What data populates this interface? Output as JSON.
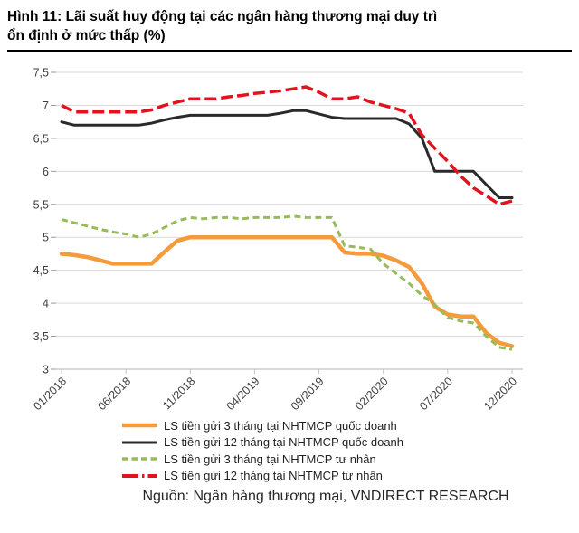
{
  "header": {
    "title_lines": [
      "Hình 11: Lãi suất huy động tại các ngân hàng thương mại duy trì",
      "ổn định ở mức thấp (%)"
    ]
  },
  "source": {
    "label": "Nguồn: Ngân hàng thương mại, VNDIRECT RESEARCH"
  },
  "chart_data": {
    "type": "line",
    "title": "Lãi suất huy động tại các ngân hàng thương mại (%)",
    "n_points": 36,
    "x_range_months": [
      "01/2018",
      "12/2020"
    ],
    "x_tick_labels": [
      "01/2018",
      "06/2018",
      "11/2018",
      "04/2019",
      "09/2019",
      "02/2020",
      "07/2020",
      "12/2020"
    ],
    "x_tick_indices": [
      0,
      5,
      10,
      15,
      20,
      25,
      30,
      35
    ],
    "ylim": [
      3,
      7.5
    ],
    "y_ticks": [
      {
        "v": 7.5,
        "label": "7,5"
      },
      {
        "v": 7.0,
        "label": "7"
      },
      {
        "v": 6.5,
        "label": "6,5"
      },
      {
        "v": 6.0,
        "label": "6"
      },
      {
        "v": 5.5,
        "label": "5,5"
      },
      {
        "v": 5.0,
        "label": "5"
      },
      {
        "v": 4.5,
        "label": "4,5"
      },
      {
        "v": 4.0,
        "label": "4"
      },
      {
        "v": 3.5,
        "label": "3,5"
      },
      {
        "v": 3.0,
        "label": "3"
      }
    ],
    "grid": true,
    "legend_position": "bottom",
    "series": [
      {
        "name": "LS tiền gửi 3 tháng tại NHTMCP quốc doanh",
        "color": "#f49b3b",
        "style": "solid",
        "width": 4.5,
        "values": [
          4.75,
          4.73,
          4.7,
          4.65,
          4.6,
          4.6,
          4.6,
          4.6,
          4.78,
          4.95,
          5.0,
          5.0,
          5.0,
          5.0,
          5.0,
          5.0,
          5.0,
          5.0,
          5.0,
          5.0,
          5.0,
          5.0,
          4.77,
          4.75,
          4.75,
          4.72,
          4.65,
          4.55,
          4.3,
          3.95,
          3.83,
          3.8,
          3.8,
          3.55,
          3.4,
          3.35
        ]
      },
      {
        "name": "LS tiền gửi 12 tháng tại NHTMCP quốc doanh",
        "color": "#2a2a2a",
        "style": "solid",
        "width": 3,
        "values": [
          6.75,
          6.7,
          6.7,
          6.7,
          6.7,
          6.7,
          6.7,
          6.73,
          6.78,
          6.82,
          6.85,
          6.85,
          6.85,
          6.85,
          6.85,
          6.85,
          6.85,
          6.88,
          6.92,
          6.92,
          6.87,
          6.82,
          6.8,
          6.8,
          6.8,
          6.8,
          6.8,
          6.72,
          6.5,
          6.0,
          6.0,
          6.0,
          6.0,
          5.8,
          5.6,
          5.6
        ]
      },
      {
        "name": "LS tiền gửi 3 tháng tại NHTMCP tư nhân",
        "color": "#96bc58",
        "style": "dashed",
        "width": 3,
        "values": [
          5.27,
          5.22,
          5.17,
          5.12,
          5.08,
          5.05,
          5.0,
          5.05,
          5.15,
          5.25,
          5.3,
          5.28,
          5.3,
          5.3,
          5.28,
          5.3,
          5.3,
          5.3,
          5.32,
          5.3,
          5.3,
          5.3,
          4.87,
          4.85,
          4.82,
          4.6,
          4.45,
          4.3,
          4.12,
          3.98,
          3.78,
          3.73,
          3.7,
          3.5,
          3.33,
          3.3
        ]
      },
      {
        "name": "LS tiền gửi 12 tháng tại NHTMCP tư nhân",
        "color": "#e2131f",
        "style": "long-dash",
        "width": 3.5,
        "values": [
          7.0,
          6.9,
          6.9,
          6.9,
          6.9,
          6.9,
          6.9,
          6.93,
          7.0,
          7.05,
          7.1,
          7.1,
          7.1,
          7.13,
          7.15,
          7.18,
          7.2,
          7.22,
          7.25,
          7.28,
          7.2,
          7.1,
          7.1,
          7.13,
          7.05,
          7.0,
          6.95,
          6.88,
          6.55,
          6.35,
          6.15,
          5.93,
          5.75,
          5.63,
          5.5,
          5.55
        ]
      }
    ],
    "colors": {
      "grid": "#d9d9d9",
      "axis": "#c3c3c3",
      "tick_label": "#3f3f3f"
    }
  }
}
